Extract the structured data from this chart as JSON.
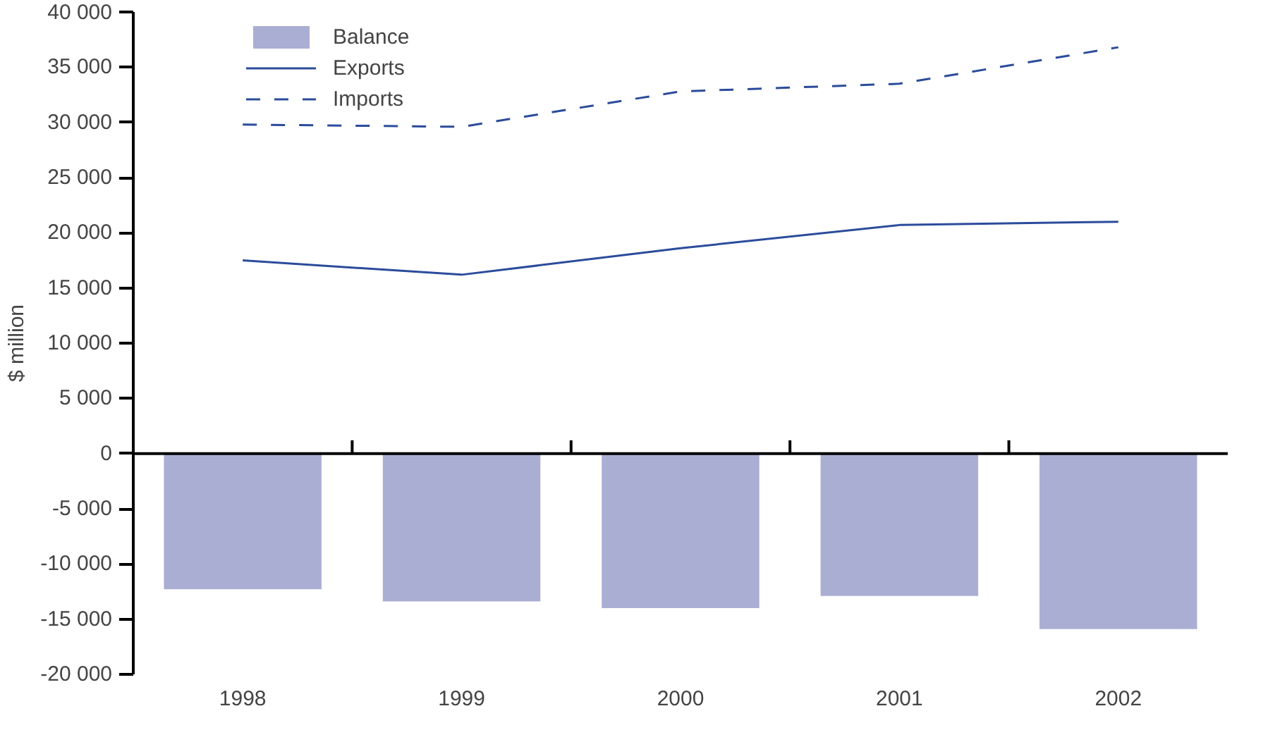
{
  "chart_data": {
    "type": "bar",
    "ylabel": "$ million",
    "categories": [
      "1998",
      "1999",
      "2000",
      "2001",
      "2002"
    ],
    "series": [
      {
        "name": "Balance",
        "color": "#aaaed3",
        "values": [
          -12300,
          -13400,
          -14000,
          -12900,
          -15900
        ]
      },
      {
        "name": "Exports",
        "type": "line",
        "line_style": "solid",
        "color": "#2b4c9b",
        "values": [
          17500,
          16200,
          18600,
          20700,
          21000
        ]
      },
      {
        "name": "Imports",
        "type": "line",
        "line_style": "dashed",
        "color": "#2b4c9b",
        "values": [
          29800,
          29600,
          32800,
          33500,
          36800
        ]
      }
    ],
    "ylim": [
      -20000,
      40000
    ],
    "yticks": [
      {
        "value": -20000,
        "label": "-20 000"
      },
      {
        "value": -15000,
        "label": "-15 000"
      },
      {
        "value": -10000,
        "label": "-10 000"
      },
      {
        "value": -5000,
        "label": "-5 000"
      },
      0,
      {
        "value": 5000,
        "label": "5 000"
      },
      {
        "value": 10000,
        "label": "10 000"
      },
      {
        "value": 15000,
        "label": "15 000"
      },
      {
        "value": 20000,
        "label": "20 000"
      },
      {
        "value": 25000,
        "label": "25 000"
      },
      {
        "value": 30000,
        "label": "30 000"
      },
      {
        "value": 35000,
        "label": "35 000"
      },
      {
        "value": 40000,
        "label": "40 000"
      }
    ],
    "legend": "top left"
  }
}
